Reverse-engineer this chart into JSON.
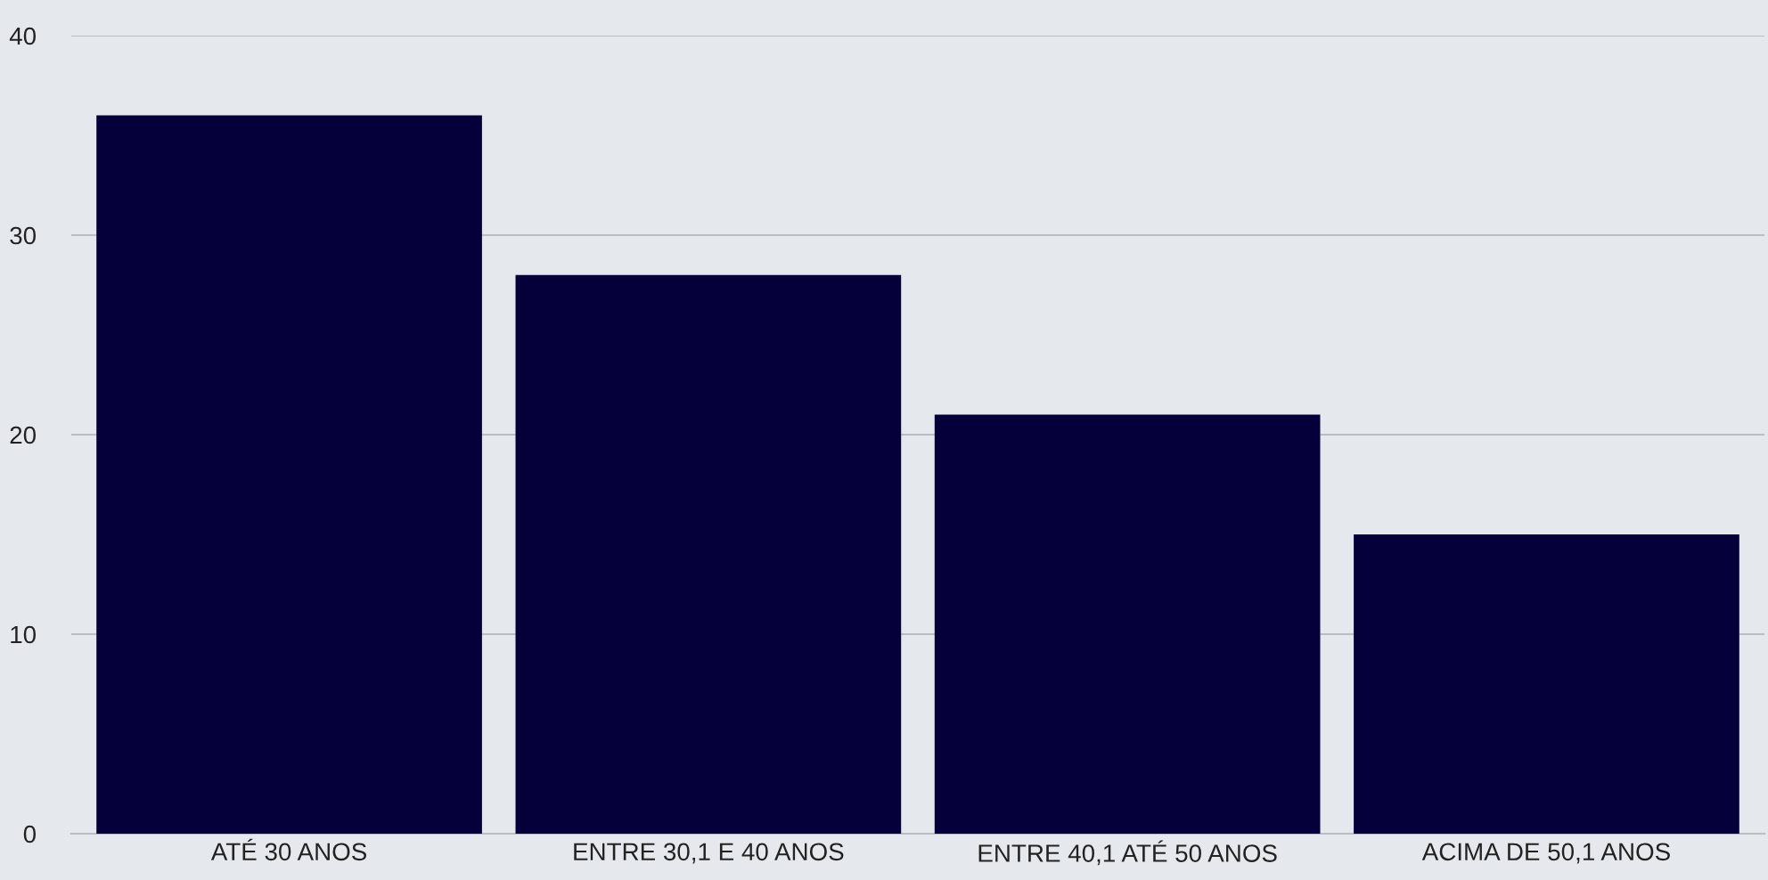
{
  "chart_data": {
    "type": "bar",
    "categories": [
      "ATÉ 30 ANOS",
      "ENTRE 30,1 E 40 ANOS",
      "ENTRE 40,1 ATÉ 50 ANOS",
      "ACIMA DE 50,1 ANOS"
    ],
    "values": [
      36,
      28,
      21,
      15
    ],
    "color": "#06003a",
    "ylim": [
      0,
      40
    ],
    "yticks": [
      0,
      10,
      20,
      30,
      40
    ],
    "grid": "y",
    "legend": false
  }
}
